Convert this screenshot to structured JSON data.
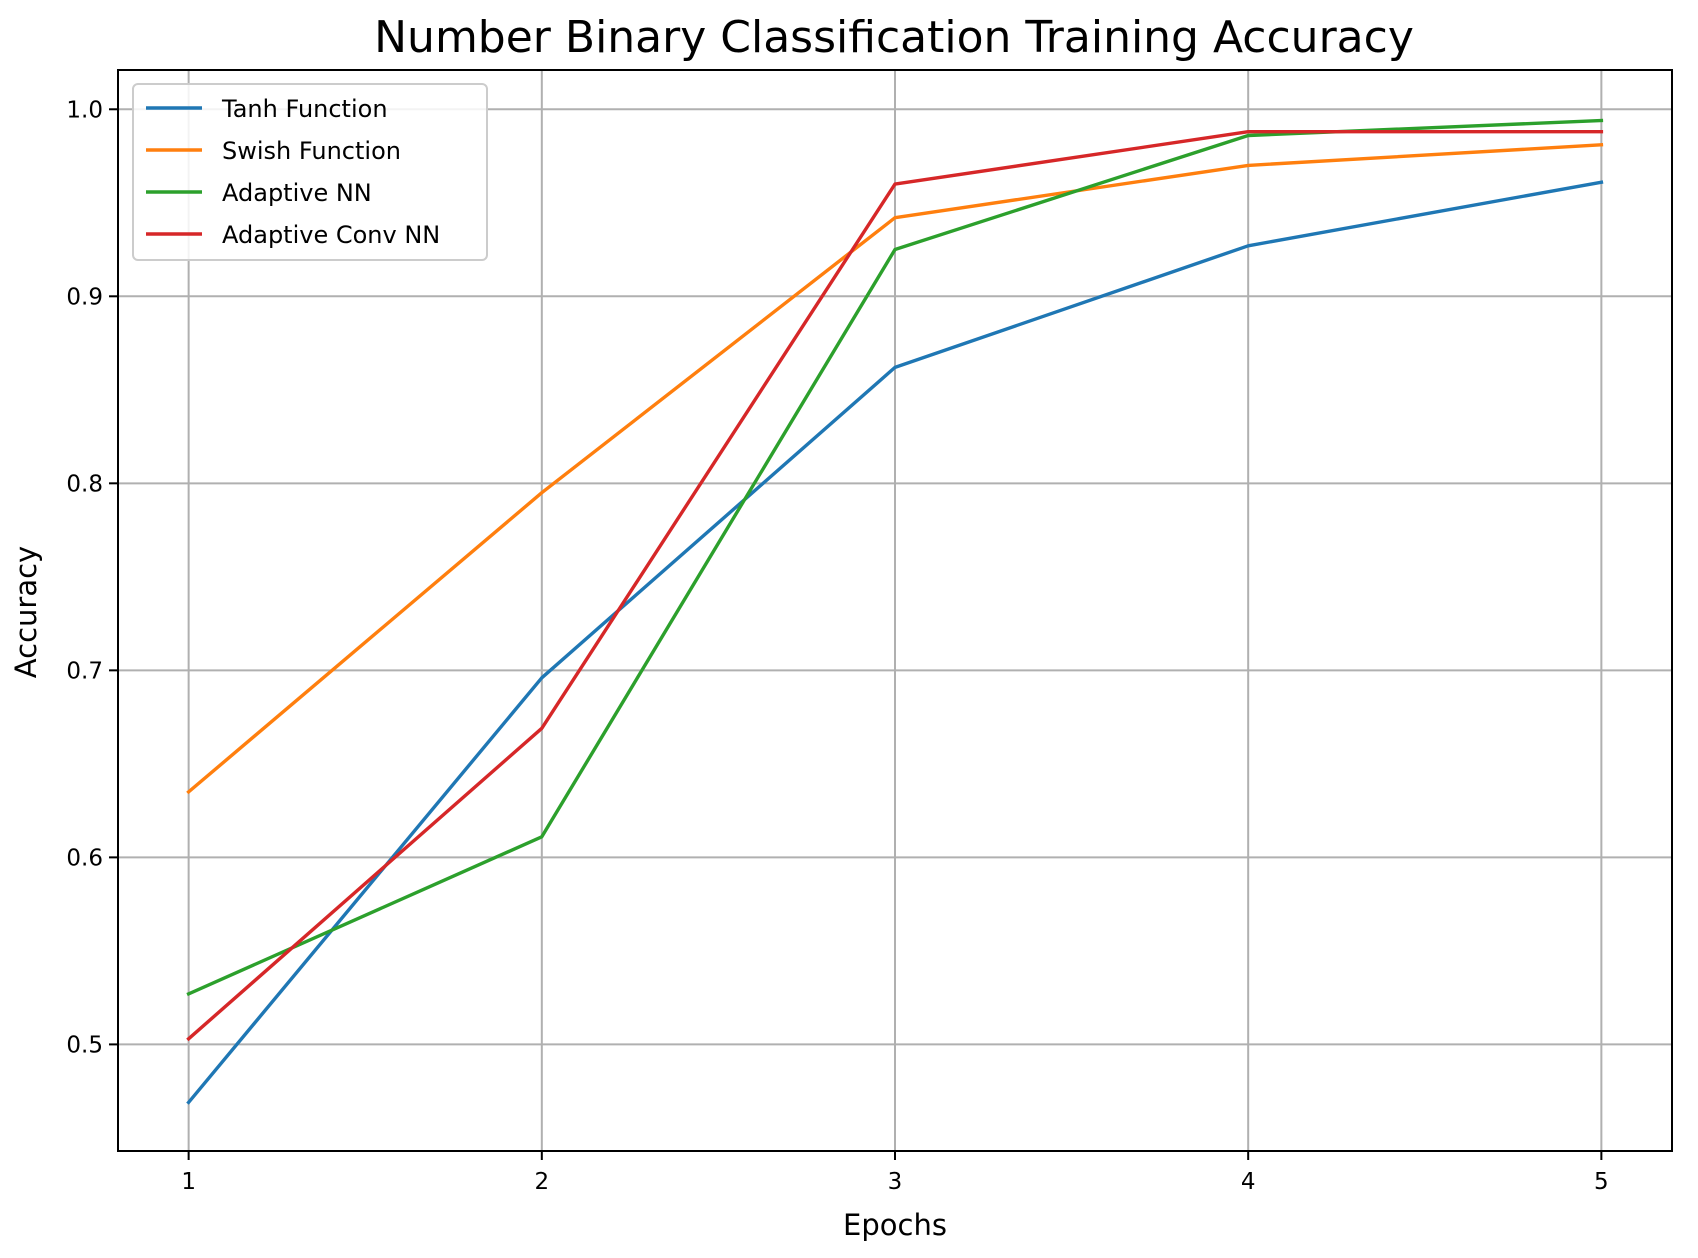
{
  "chart_data": {
    "type": "line",
    "title": "Number Binary Classification Training Accuracy",
    "xlabel": "Epochs",
    "ylabel": "Accuracy",
    "x": [
      1,
      2,
      3,
      4,
      5
    ],
    "xticks": [
      "1",
      "2",
      "3",
      "4",
      "5"
    ],
    "yticks": [
      "0.5",
      "0.6",
      "0.7",
      "0.8",
      "0.9",
      "1.0"
    ],
    "xlim": [
      0.8,
      5.2
    ],
    "ylim": [
      0.443,
      1.021
    ],
    "grid": true,
    "legend_position": "top-left",
    "series": [
      {
        "name": "Tanh Function",
        "color": "#1f77b4",
        "values": [
          0.469,
          0.696,
          0.862,
          0.927,
          0.961
        ]
      },
      {
        "name": "Swish Function",
        "color": "#ff7f0e",
        "values": [
          0.635,
          0.795,
          0.942,
          0.97,
          0.981
        ]
      },
      {
        "name": "Adaptive NN",
        "color": "#2ca02c",
        "values": [
          0.527,
          0.611,
          0.925,
          0.986,
          0.994
        ]
      },
      {
        "name": "Adaptive Conv NN",
        "color": "#d62728",
        "values": [
          0.503,
          0.669,
          0.96,
          0.988,
          0.988
        ]
      }
    ]
  }
}
